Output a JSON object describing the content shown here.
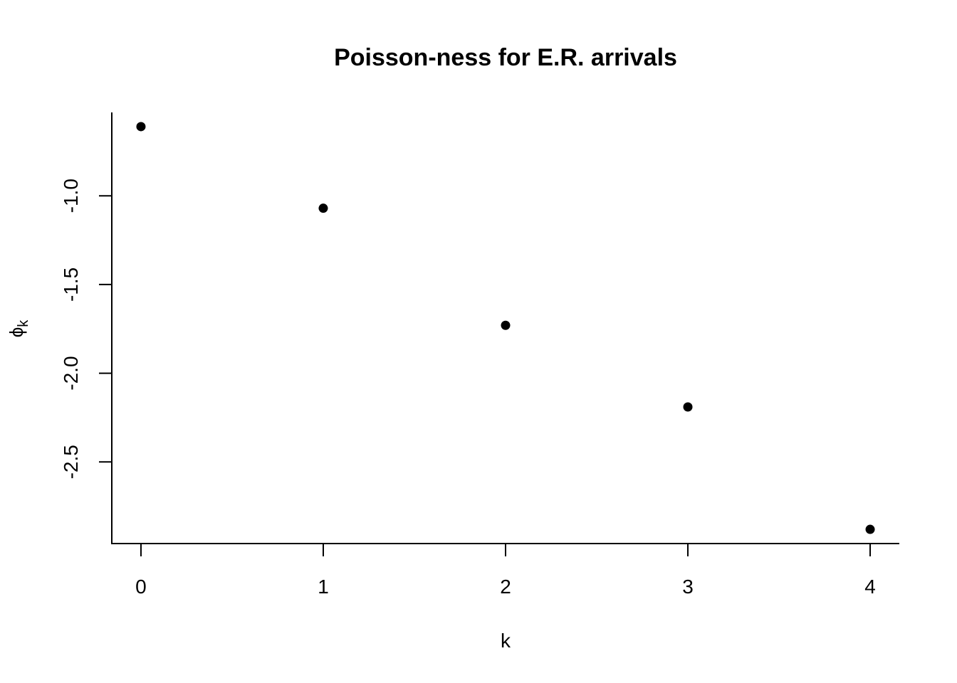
{
  "chart_data": {
    "type": "scatter",
    "title": "Poisson-ness for E.R. arrivals",
    "xlabel": "k",
    "ylabel_main": "ϕ",
    "ylabel_sub": "k",
    "x": [
      0,
      1,
      2,
      3,
      4
    ],
    "y": [
      -0.61,
      -1.07,
      -1.73,
      -2.19,
      -2.88
    ],
    "x_ticks": [
      0,
      1,
      2,
      3,
      4
    ],
    "y_ticks": [
      -1.0,
      -1.5,
      -2.0,
      -2.5
    ],
    "x_tick_labels": [
      "0",
      "1",
      "2",
      "3",
      "4"
    ],
    "y_tick_labels": [
      "-1.0",
      "-1.5",
      "-2.0",
      "-2.5"
    ],
    "xlim": [
      -0.16,
      4.16
    ],
    "ylim": [
      -2.96,
      -0.53
    ],
    "grid": false,
    "marker_color": "#000000"
  }
}
